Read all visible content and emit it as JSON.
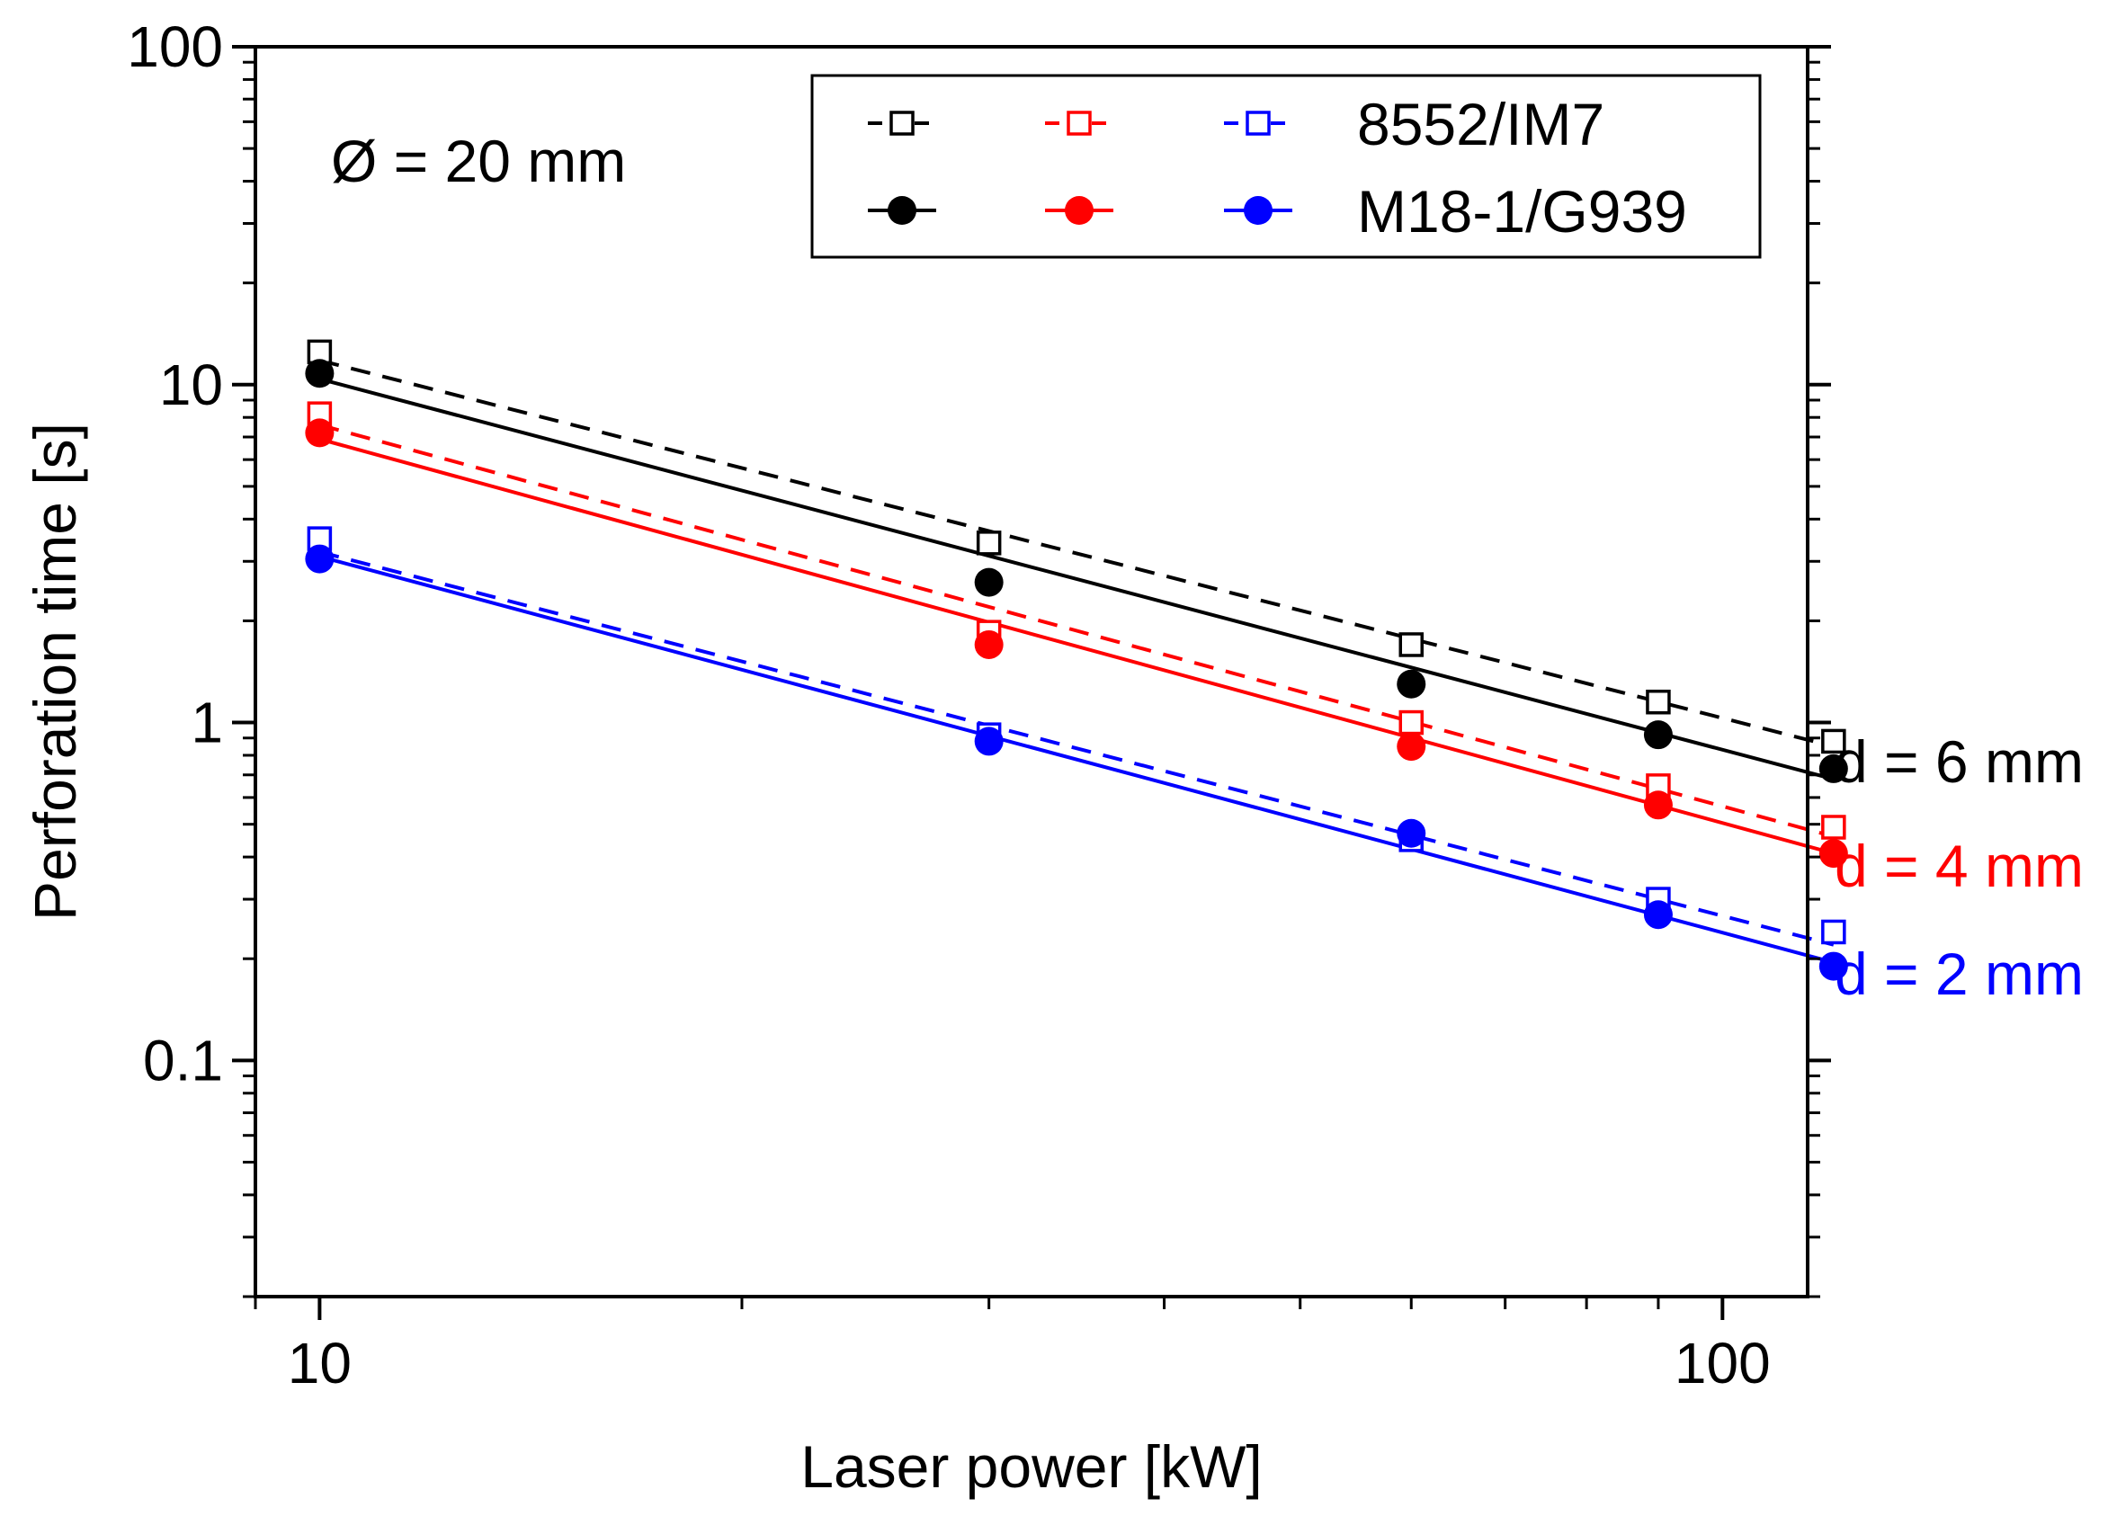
{
  "chart_data": {
    "type": "scatter",
    "xlabel": "Laser power [kW]",
    "ylabel": "Perforation time [s]",
    "xscale": "log",
    "yscale": "log",
    "xlim": [
      9.0,
      115.0
    ],
    "ylim": [
      0.02,
      100
    ],
    "x_ticks": [
      {
        "value": 10,
        "label": "10"
      },
      {
        "value": 100,
        "label": "100"
      }
    ],
    "y_ticks": [
      {
        "value": 0.1,
        "label": "0.1"
      },
      {
        "value": 1,
        "label": "1"
      },
      {
        "value": 10,
        "label": "10"
      },
      {
        "value": 100,
        "label": "100"
      }
    ],
    "grid": false,
    "legend_position": "top-right",
    "legend": {
      "entries": [
        {
          "label": "8552/IM7",
          "marker": "open-square",
          "line": "dashed",
          "colors": [
            "#000000",
            "#ff0000",
            "#0000ff"
          ]
        },
        {
          "label": "M18-1/G939",
          "marker": "filled-circle",
          "line": "solid",
          "colors": [
            "#000000",
            "#ff0000",
            "#0000ff"
          ]
        }
      ]
    },
    "annotations": [
      {
        "text": "Ø = 20 mm",
        "color": "#000000"
      },
      {
        "text": "d = 6 mm",
        "color": "#000000"
      },
      {
        "text": "d = 4 mm",
        "color": "#ff0000"
      },
      {
        "text": "d = 2 mm",
        "color": "#0000ff"
      }
    ],
    "series": [
      {
        "material": "8552/IM7",
        "thickness": "d = 6 mm",
        "color": "#000000",
        "marker": "open-square",
        "line": "dashed",
        "x": [
          10,
          30,
          60,
          90,
          120
        ],
        "y": [
          12.5,
          3.4,
          1.7,
          1.15,
          0.88
        ],
        "fit": [
          11.8,
          0.85
        ]
      },
      {
        "material": "M18-1/G939",
        "thickness": "d = 6 mm",
        "color": "#000000",
        "marker": "filled-circle",
        "line": "solid",
        "x": [
          10,
          30,
          60,
          90,
          120
        ],
        "y": [
          10.8,
          2.6,
          1.3,
          0.92,
          0.73
        ],
        "fit": [
          10.4,
          0.68
        ]
      },
      {
        "material": "8552/IM7",
        "thickness": "d = 4 mm",
        "color": "#ff0000",
        "marker": "open-square",
        "line": "dashed",
        "x": [
          10,
          30,
          60,
          90,
          120
        ],
        "y": [
          8.2,
          1.85,
          1.0,
          0.65,
          0.49
        ],
        "fit": [
          7.6,
          0.46
        ]
      },
      {
        "material": "M18-1/G939",
        "thickness": "d = 4 mm",
        "color": "#ff0000",
        "marker": "filled-circle",
        "line": "solid",
        "x": [
          10,
          30,
          60,
          90,
          120
        ],
        "y": [
          7.2,
          1.7,
          0.85,
          0.57,
          0.41
        ],
        "fit": [
          6.9,
          0.41
        ]
      },
      {
        "material": "8552/IM7",
        "thickness": "d = 2 mm",
        "color": "#0000ff",
        "marker": "open-square",
        "line": "dashed",
        "x": [
          10,
          30,
          60,
          90,
          120
        ],
        "y": [
          3.5,
          0.92,
          0.45,
          0.3,
          0.24
        ],
        "fit": [
          3.2,
          0.22
        ]
      },
      {
        "material": "M18-1/G939",
        "thickness": "d = 2 mm",
        "color": "#0000ff",
        "marker": "filled-circle",
        "line": "solid",
        "x": [
          10,
          30,
          60,
          90,
          120
        ],
        "y": [
          3.05,
          0.88,
          0.47,
          0.27,
          0.19
        ],
        "fit": [
          3.1,
          0.195
        ]
      }
    ]
  }
}
